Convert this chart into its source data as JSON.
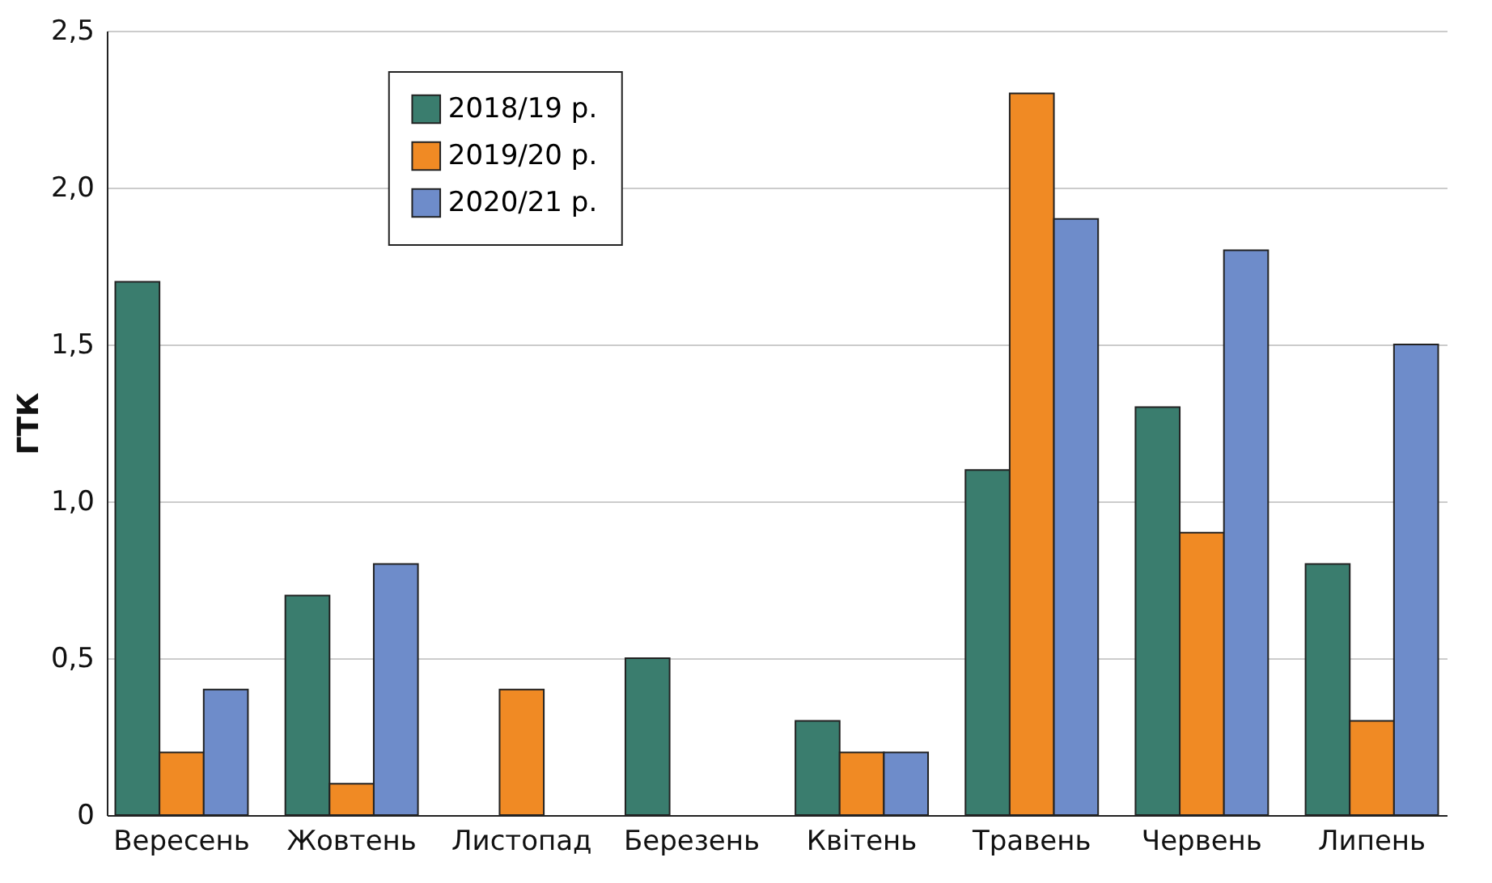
{
  "chart_data": {
    "type": "bar",
    "ylabel": "ГТК",
    "categories": [
      "Вересень",
      "Жовтень",
      "Листопад",
      "Березень",
      "Квітень",
      "Травень",
      "Червень",
      "Липень"
    ],
    "series": [
      {
        "name": "2018/19 р.",
        "color": "#3a7d6e",
        "values": [
          1.7,
          0.7,
          null,
          0.5,
          0.3,
          1.1,
          1.3,
          0.8
        ]
      },
      {
        "name": "2019/20 р.",
        "color": "#f08a24",
        "values": [
          0.2,
          0.1,
          0.4,
          null,
          0.2,
          2.3,
          0.9,
          0.3
        ]
      },
      {
        "name": "2020/21 р.",
        "color": "#6e8cca",
        "values": [
          0.4,
          0.8,
          null,
          null,
          0.2,
          1.9,
          1.8,
          1.5
        ]
      }
    ],
    "ylim": [
      0,
      2.5
    ],
    "yticks": [
      0,
      {
        "value": 0.5,
        "label": "0,5"
      },
      {
        "value": 1,
        "label": "1,0"
      },
      {
        "value": 1.5,
        "label": "1,5"
      },
      {
        "value": 2,
        "label": "2,0"
      },
      {
        "value": 2.5,
        "label": "2,5"
      }
    ],
    "grid": "y",
    "legend": "top left"
  }
}
